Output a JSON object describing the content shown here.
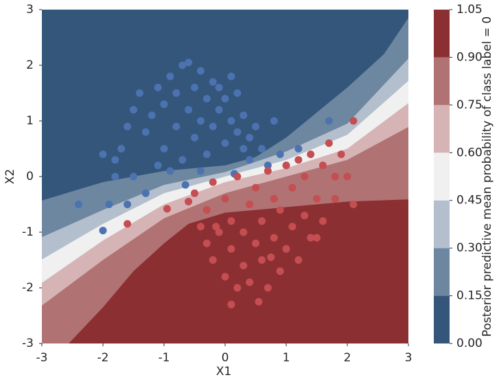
{
  "chart_data": {
    "type": "contour-scatter",
    "xlabel": "X1",
    "ylabel": "X2",
    "colorbar_label": "Posterior predictive mean probability of class label = 0",
    "xlim": [
      -3,
      3
    ],
    "ylim": [
      -3,
      3
    ],
    "xticks": [
      -3,
      -2,
      -1,
      0,
      1,
      2,
      3
    ],
    "yticks": [
      -3,
      -2,
      -1,
      0,
      1,
      2,
      3
    ],
    "levels": [
      {
        "value": 0,
        "label": "0.00"
      },
      {
        "value": 0.15,
        "label": "0.15"
      },
      {
        "value": 0.3,
        "label": "0.30"
      },
      {
        "value": 0.45,
        "label": "0.45"
      },
      {
        "value": 0.6,
        "label": "0.60"
      },
      {
        "value": 0.75,
        "label": "0.75"
      },
      {
        "value": 0.9,
        "label": "0.90"
      },
      {
        "value": 1.05,
        "label": "1.05"
      }
    ],
    "colors": [
      "#34567b",
      "#6e87a0",
      "#b3bfcc",
      "#f0f0f0",
      "#d6b3b4",
      "#b07272",
      "#8b2f33"
    ],
    "contours": [
      {
        "x": [
          -3,
          -2,
          -1,
          0,
          0.5,
          1,
          2,
          2.6,
          3
        ],
        "y": [
          -0.43,
          -0.1,
          0.1,
          0.2,
          0.35,
          0.7,
          1.6,
          2.2,
          2.85
        ]
      },
      {
        "x": [
          -3,
          -2,
          -1,
          0,
          1,
          2,
          3
        ],
        "y": [
          -1.09,
          -0.6,
          -0.15,
          0.08,
          0.45,
          0.95,
          2.12
        ]
      },
      {
        "x": [
          -3,
          -2,
          -1,
          0,
          1,
          2,
          3
        ],
        "y": [
          -1.49,
          -0.85,
          -0.3,
          0,
          0.3,
          0.75,
          1.72
        ]
      },
      {
        "x": [
          -3,
          -2,
          -1,
          0,
          1,
          2,
          3
        ],
        "y": [
          -1.91,
          -1.15,
          -0.5,
          -0.1,
          0.15,
          0.5,
          1.32
        ]
      },
      {
        "x": [
          -3,
          -2,
          -1,
          0,
          1,
          2,
          3
        ],
        "y": [
          -2.32,
          -1.5,
          -0.75,
          -0.3,
          0,
          0.3,
          0.89
        ]
      },
      {
        "x": [
          -2.56,
          -2,
          -1.5,
          -1,
          -0.6,
          0,
          1,
          2,
          3
        ],
        "y": [
          -3,
          -2.35,
          -1.7,
          -1.2,
          -0.85,
          -0.65,
          -0.55,
          -0.45,
          -0.41
        ]
      }
    ],
    "series": [
      {
        "color": "#4c72b0",
        "x": [
          -2.4,
          -2.0,
          -1.9,
          -1.8,
          -1.8,
          -1.7,
          -1.6,
          -1.5,
          -1.5,
          -1.4,
          -1.3,
          -1.3,
          -1.2,
          -1.1,
          -1.0,
          -1.0,
          -0.9,
          -0.8,
          -0.8,
          -0.7,
          -0.7,
          -0.6,
          -0.6,
          -0.5,
          -0.5,
          -0.4,
          -0.4,
          -0.3,
          -0.3,
          -0.2,
          -0.2,
          -0.1,
          -0.1,
          0.0,
          0.0,
          0.1,
          0.1,
          0.2,
          0.2,
          0.3,
          0.3,
          0.4,
          0.4,
          0.5,
          0.6,
          0.7,
          0.8,
          0.9,
          1.2,
          1.7,
          -2.0,
          -1.6,
          -0.4,
          -0.65,
          0.15,
          -1.1,
          -0.9
        ],
        "values": [
          -0.5,
          -0.97,
          -0.5,
          0.0,
          0.3,
          0.5,
          0.9,
          1.2,
          0.0,
          1.5,
          0.8,
          -0.3,
          1.1,
          1.6,
          0.5,
          1.3,
          1.8,
          0.9,
          1.5,
          2.0,
          0.3,
          1.2,
          2.05,
          0.7,
          1.6,
          1.0,
          1.9,
          0.4,
          1.4,
          1.7,
          0.9,
          1.2,
          1.6,
          0.6,
          1.4,
          1.0,
          1.8,
          0.8,
          1.5,
          0.5,
          1.1,
          0.7,
          0.3,
          0.9,
          0.5,
          0.2,
          1.0,
          0.4,
          0.5,
          1.0,
          0.4,
          -0.5,
          0.1,
          -0.15,
          0.05,
          0.2,
          0.1
        ]
      },
      {
        "color": "#c44e52",
        "x": [
          -1.6,
          -0.95,
          -0.6,
          -0.5,
          -0.4,
          -0.3,
          -0.3,
          -0.2,
          -0.2,
          -0.1,
          0.0,
          0.0,
          0.1,
          0.1,
          0.2,
          0.2,
          0.3,
          0.3,
          0.4,
          0.4,
          0.5,
          0.5,
          0.6,
          0.6,
          0.7,
          0.7,
          0.8,
          0.8,
          0.9,
          0.9,
          1.0,
          1.0,
          1.1,
          1.1,
          1.2,
          1.2,
          1.3,
          1.3,
          1.4,
          1.4,
          1.5,
          1.6,
          1.6,
          1.7,
          1.8,
          1.8,
          1.9,
          2.0,
          2.1,
          2.1,
          0.55,
          0.1,
          -0.15,
          1.5,
          0.75
        ],
        "values": [
          -0.85,
          -0.58,
          -0.45,
          -0.3,
          -0.9,
          -1.2,
          -0.6,
          -1.5,
          -0.1,
          -1.0,
          -1.8,
          -0.4,
          -1.3,
          -0.8,
          -2.0,
          0.0,
          -1.6,
          -1.0,
          -0.5,
          -1.9,
          -1.2,
          -0.2,
          -1.5,
          -0.8,
          -2.0,
          0.1,
          -1.1,
          -0.4,
          -1.7,
          -0.6,
          -1.3,
          0.2,
          -0.9,
          -0.2,
          -1.5,
          0.3,
          -0.7,
          0.0,
          -1.1,
          0.4,
          -0.4,
          0.2,
          -0.8,
          0.6,
          0.0,
          -0.4,
          0.4,
          0.0,
          1.0,
          -0.5,
          -2.25,
          -2.3,
          -0.9,
          -1.1,
          -1.45
        ]
      }
    ]
  }
}
